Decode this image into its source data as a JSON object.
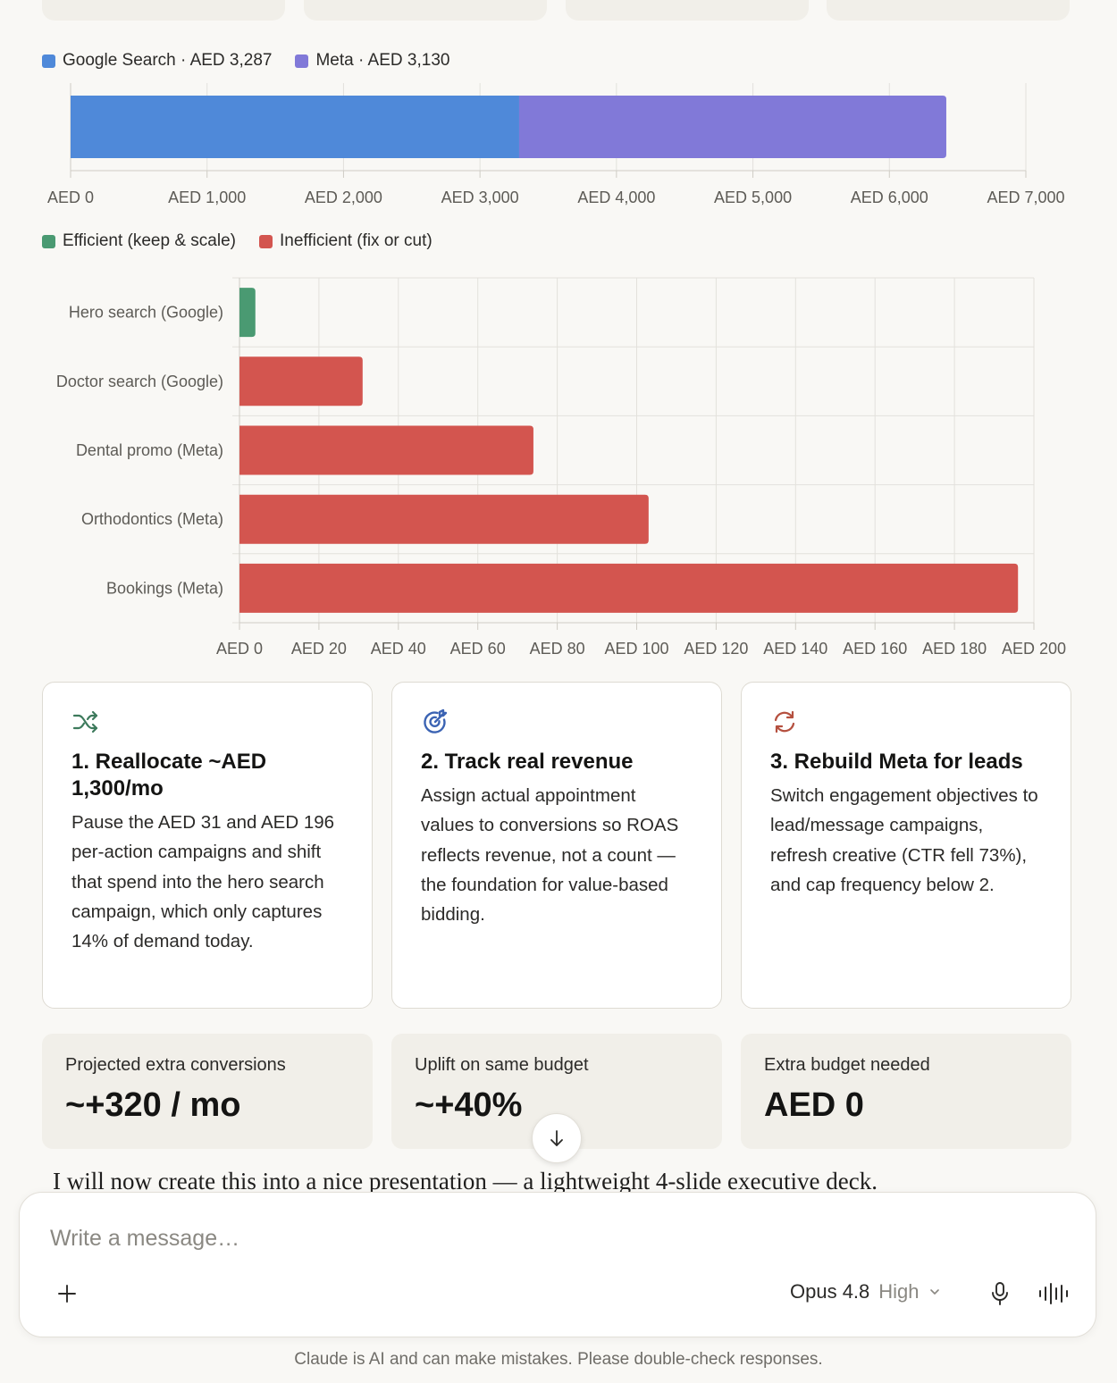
{
  "spend_chart": {
    "legend": [
      {
        "label": "Google Search · AED 3,287",
        "color": "#4f89d9"
      },
      {
        "label": "Meta · AED 3,130",
        "color": "#8179d8"
      }
    ]
  },
  "cost_chart": {
    "legend": [
      {
        "label": "Efficient (keep & scale)",
        "color": "#4a9a72"
      },
      {
        "label": "Inefficient (fix or cut)",
        "color": "#d3554f"
      }
    ]
  },
  "chart_data": [
    {
      "type": "bar",
      "orientation": "horizontal-stacked",
      "categories": [
        ""
      ],
      "series": [
        {
          "name": "Google Search · AED 3,287",
          "values": [
            3287
          ]
        },
        {
          "name": "Meta · AED 3,130",
          "values": [
            3130
          ]
        }
      ],
      "x_ticks": [
        "AED 0",
        "AED 1,000",
        "AED 2,000",
        "AED 3,000",
        "AED 4,000",
        "AED 5,000",
        "AED 6,000",
        "AED 7,000"
      ],
      "xlim": [
        0,
        7000
      ],
      "colors": [
        "#4f89d9",
        "#8179d8"
      ],
      "grid": true,
      "legend_position": "top-left"
    },
    {
      "type": "bar",
      "orientation": "horizontal",
      "categories": [
        "Hero search (Google)",
        "Doctor search (Google)",
        "Dental promo (Meta)",
        "Orthodontics (Meta)",
        "Bookings (Meta)"
      ],
      "values": [
        4,
        31,
        74,
        103,
        196
      ],
      "status": [
        "efficient",
        "inefficient",
        "inefficient",
        "inefficient",
        "inefficient"
      ],
      "x_ticks": [
        "AED 0",
        "AED 20",
        "AED 40",
        "AED 60",
        "AED 80",
        "AED 100",
        "AED 120",
        "AED 140",
        "AED 160",
        "AED 180",
        "AED 200"
      ],
      "xlim": [
        0,
        200
      ],
      "colors": {
        "efficient": "#4a9a72",
        "inefficient": "#d3554f"
      },
      "grid": true,
      "legend_position": "top-left"
    }
  ],
  "cards": [
    {
      "icon": "shuffle-icon",
      "icon_color": "#3d7a5c",
      "title": "1. Reallocate ~AED 1,300/mo",
      "body": "Pause the AED 31 and AED 196 per-action campaigns and shift that spend into the hero search campaign, which only captures 14% of demand today."
    },
    {
      "icon": "target-icon",
      "icon_color": "#3b63b3",
      "title": "2. Track real revenue",
      "body": "Assign actual appointment values to conversions so ROAS reflects revenue, not a count — the foundation for value-based bidding."
    },
    {
      "icon": "refresh-icon",
      "icon_color": "#b5503f",
      "title": "3. Rebuild Meta for leads",
      "body": "Switch engagement objectives to lead/message campaigns, refresh creative (CTR fell 73%), and cap frequency below 2."
    }
  ],
  "metrics": [
    {
      "label": "Projected extra conversions",
      "value": "~+320 / mo"
    },
    {
      "label": "Uplift on same budget",
      "value": "~+40%"
    },
    {
      "label": "Extra budget needed",
      "value": "AED 0"
    }
  ],
  "assistant_message": "I will now create this into a nice presentation — a lightweight 4-slide executive deck.",
  "composer": {
    "placeholder": "Write a message…",
    "model": "Opus 4.8",
    "effort": "High"
  },
  "disclaimer": "Claude is AI and can make mistakes. Please double-check responses."
}
